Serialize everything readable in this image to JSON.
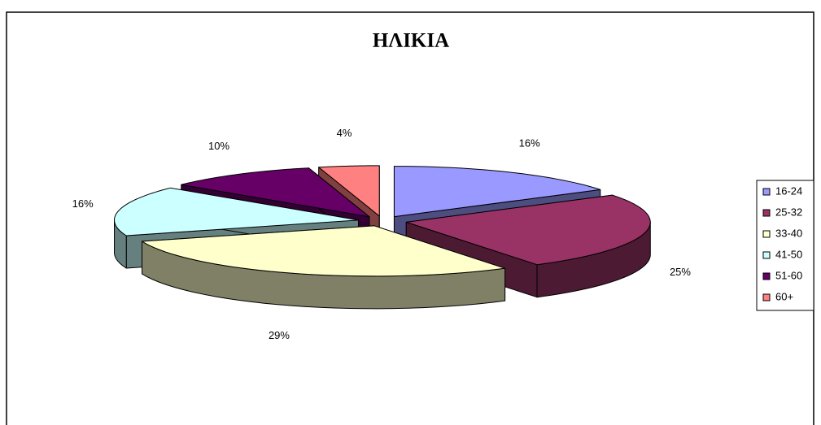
{
  "chart_data": {
    "type": "pie3d",
    "title": "ΗΛΙΚΙΑ",
    "categories": [
      "16-24",
      "25-32",
      "33-40",
      "41-50",
      "51-60",
      "60+"
    ],
    "values": [
      16,
      25,
      29,
      16,
      10,
      4
    ],
    "value_labels": [
      "16%",
      "25%",
      "29%",
      "16%",
      "10%",
      "4%"
    ],
    "colors": [
      "#9999ff",
      "#993366",
      "#ffffcc",
      "#ccffff",
      "#660066",
      "#ff8080"
    ],
    "legend": "right"
  }
}
